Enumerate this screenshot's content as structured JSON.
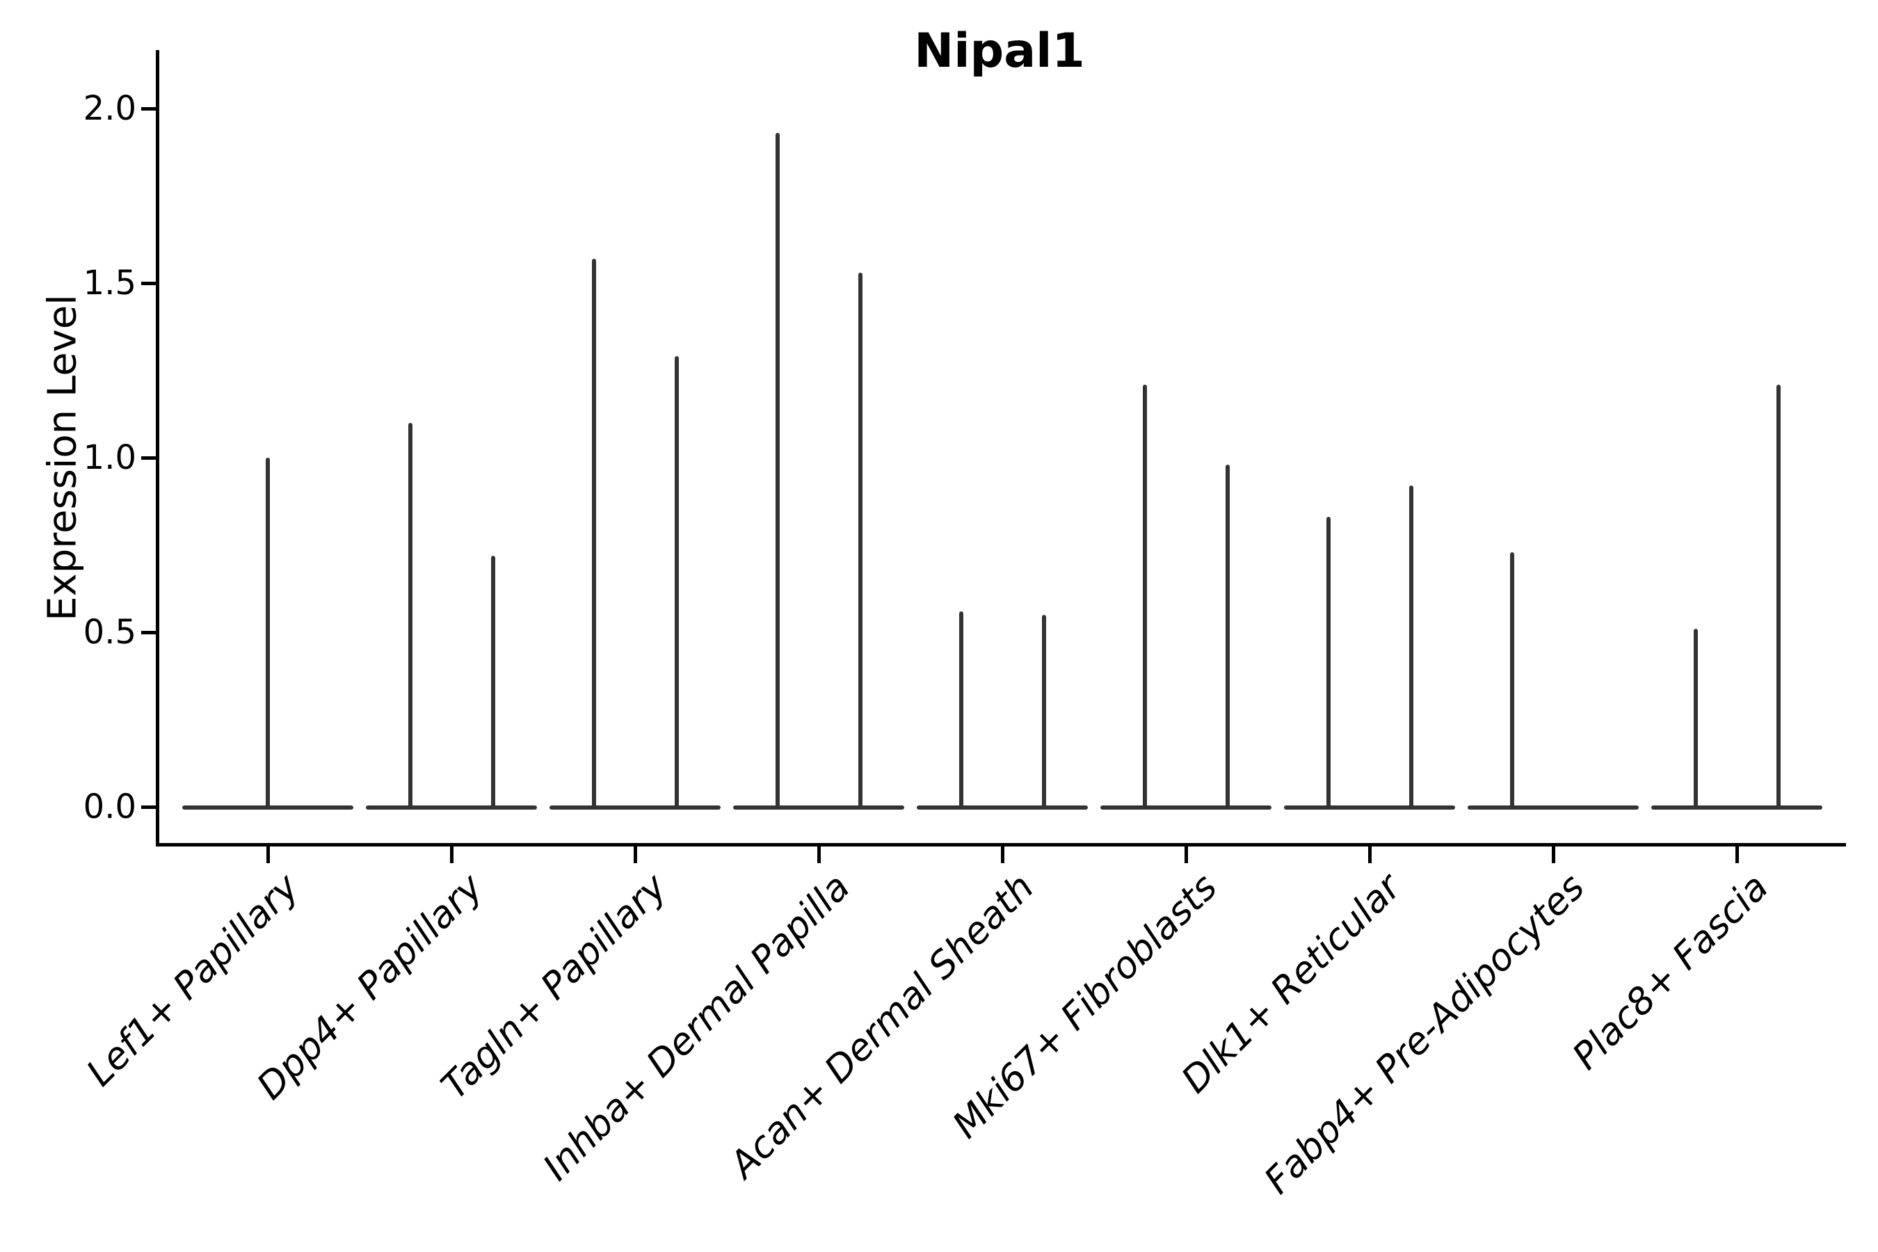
{
  "title": "Nipal1",
  "y_axis": {
    "label": "Expression Level",
    "ticks": [
      {
        "label": "2.0",
        "value": 2.0
      },
      {
        "label": "1.5",
        "value": 1.5
      },
      {
        "label": "1.0",
        "value": 1.0
      },
      {
        "label": "0.5",
        "value": 0.5
      },
      {
        "label": "0.0",
        "value": 0.0
      }
    ]
  },
  "x_axis": {
    "categories": [
      "Lef1+ Papillary",
      "Dpp4+ Papillary",
      "Tagln+ Papillary",
      "Inhba+ Dermal Papilla",
      "Acan+ Dermal Sheath",
      "Mki67+ Fibroblasts",
      "Dlk1+ Reticular",
      "Fabp4+ Pre-Adipocytes",
      "Plac8+ Fascia"
    ]
  },
  "colors": {
    "violin": "#333333",
    "axis": "#000000",
    "text": "#000000",
    "background": "#ffffff"
  },
  "chart_data": {
    "type": "violin",
    "title": "Nipal1",
    "xlabel": "",
    "ylabel": "Expression Level",
    "ylim": [
      0.0,
      2.0
    ],
    "y_ticks": [
      0.0,
      0.5,
      1.0,
      1.5,
      2.0
    ],
    "grid": false,
    "legend_position": "none",
    "categories": [
      "Lef1+ Papillary",
      "Dpp4+ Papillary",
      "Tagln+ Papillary",
      "Inhba+ Dermal Papilla",
      "Acan+ Dermal Sheath",
      "Mki67+ Fibroblasts",
      "Dlk1+ Reticular",
      "Fabp4+ Pre-Adipocytes",
      "Plac8+ Fascia"
    ],
    "series": [
      {
        "category": "Lef1+ Papillary",
        "violins": [
          {
            "pos": "center",
            "max": 1.0
          }
        ]
      },
      {
        "category": "Dpp4+ Papillary",
        "violins": [
          {
            "pos": "left",
            "max": 1.1
          },
          {
            "pos": "right",
            "max": 0.72
          }
        ]
      },
      {
        "category": "Tagln+ Papillary",
        "violins": [
          {
            "pos": "left",
            "max": 1.57
          },
          {
            "pos": "right",
            "max": 1.29
          }
        ]
      },
      {
        "category": "Inhba+ Dermal Papilla",
        "violins": [
          {
            "pos": "left",
            "max": 1.93
          },
          {
            "pos": "right",
            "max": 1.53
          }
        ]
      },
      {
        "category": "Acan+ Dermal Sheath",
        "violins": [
          {
            "pos": "left",
            "max": 0.56
          },
          {
            "pos": "right",
            "max": 0.55
          }
        ]
      },
      {
        "category": "Mki67+ Fibroblasts",
        "violins": [
          {
            "pos": "left",
            "max": 1.21
          },
          {
            "pos": "right",
            "max": 0.98
          }
        ]
      },
      {
        "category": "Dlk1+ Reticular",
        "violins": [
          {
            "pos": "left",
            "max": 0.83
          },
          {
            "pos": "right",
            "max": 0.92
          }
        ]
      },
      {
        "category": "Fabp4+ Pre-Adipocytes",
        "violins": [
          {
            "pos": "left",
            "max": 0.73
          },
          {
            "pos": "right",
            "max": 0.0
          }
        ]
      },
      {
        "category": "Plac8+ Fascia",
        "violins": [
          {
            "pos": "left",
            "max": 0.51
          },
          {
            "pos": "right",
            "max": 1.21
          }
        ]
      }
    ]
  }
}
